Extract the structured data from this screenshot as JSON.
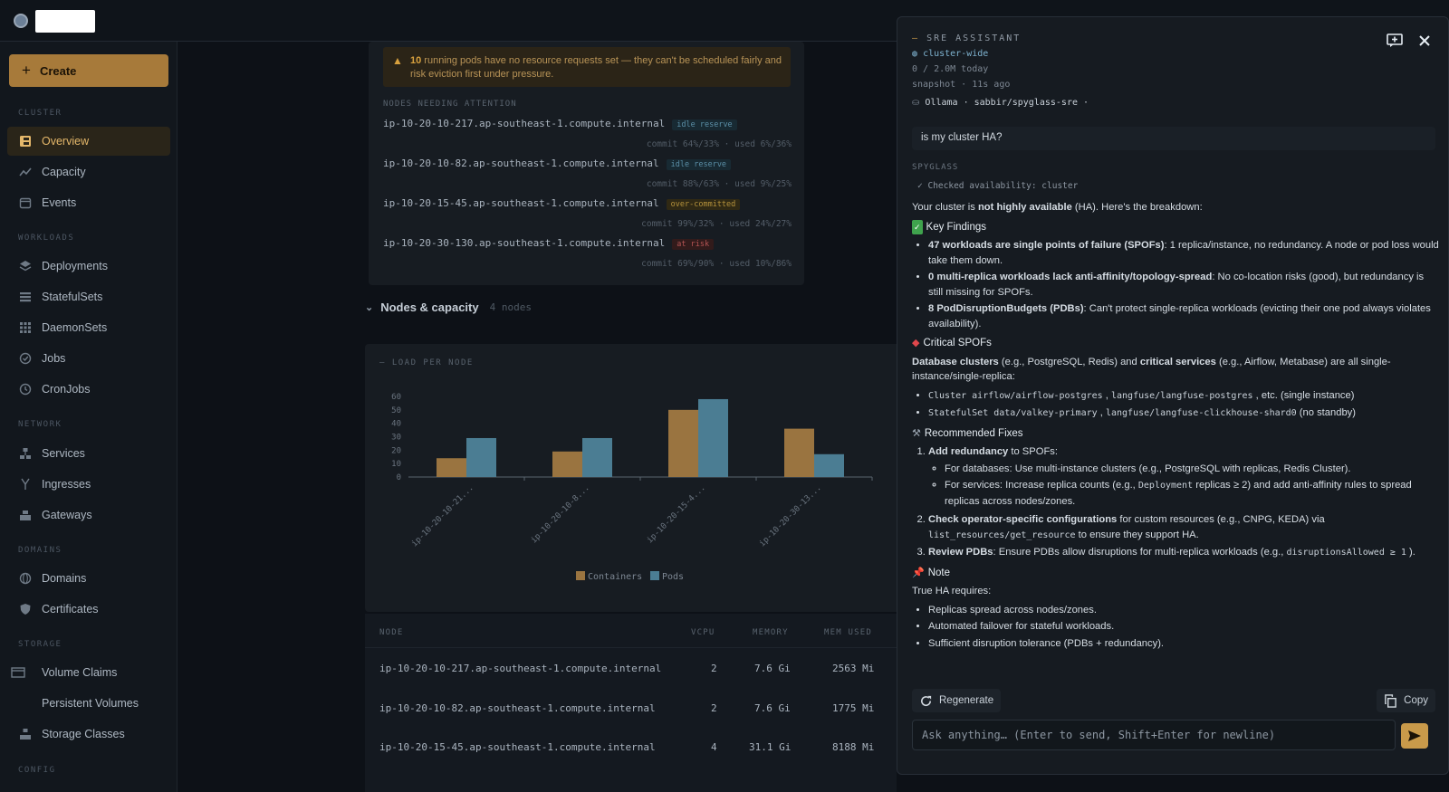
{
  "sidebar": {
    "create_label": "Create",
    "sections": {
      "cluster": "CLUSTER",
      "workloads": "WORKLOADS",
      "network": "NETWORK",
      "domains": "DOMAINS",
      "storage": "STORAGE",
      "config": "CONFIG"
    },
    "items": {
      "overview": "Overview",
      "capacity": "Capacity",
      "events": "Events",
      "deployments": "Deployments",
      "statefulsets": "StatefulSets",
      "daemonsets": "DaemonSets",
      "jobs": "Jobs",
      "cronjobs": "CronJobs",
      "services": "Services",
      "ingresses": "Ingresses",
      "gateways": "Gateways",
      "domains": "Domains",
      "certificates": "Certificates",
      "volume_claims": "Volume Claims",
      "persistent_volumes": "Persistent Volumes",
      "storage_classes": "Storage Classes"
    }
  },
  "alert": {
    "count": "10",
    "text": " running pods have no resource requests set — they can't be scheduled fairly and risk eviction first under pressure."
  },
  "attention": {
    "label": "NODES NEEDING ATTENTION",
    "nodes": [
      {
        "name": "ip-10-20-10-217.ap-southeast-1.compute.internal",
        "tag": "idle reserve",
        "stats": "commit 64%/33% · used 6%/36%"
      },
      {
        "name": "ip-10-20-10-82.ap-southeast-1.compute.internal",
        "tag": "idle reserve",
        "stats": "commit 88%/63% · used 9%/25%"
      },
      {
        "name": "ip-10-20-15-45.ap-southeast-1.compute.internal",
        "tag": "over-committed",
        "stats": "commit 99%/32% · used 24%/27%"
      },
      {
        "name": "ip-10-20-30-130.ap-southeast-1.compute.internal",
        "tag": "at risk",
        "stats": "commit 69%/90% · used 10%/86%"
      }
    ]
  },
  "nodes_section": {
    "title": "Nodes & capacity",
    "count": "4 nodes"
  },
  "chart_data": {
    "type": "bar",
    "title": "LOAD PER NODE",
    "categories": [
      "ip-10-20-10-21...",
      "ip-10-20-10-8...",
      "ip-10-20-15-4...",
      "ip-10-20-30-13..."
    ],
    "series": [
      {
        "name": "Containers",
        "values": [
          14,
          19,
          50,
          36
        ],
        "color": "#9a7440"
      },
      {
        "name": "Pods",
        "values": [
          29,
          29,
          58,
          17
        ],
        "color": "#4b7d93"
      }
    ],
    "ylim": [
      0,
      60
    ],
    "yticks": [
      0,
      10,
      20,
      30,
      40,
      50,
      60
    ],
    "legend": "bottom"
  },
  "table": {
    "headers": {
      "node": "NODE",
      "vcpu": "VCPU",
      "memory": "MEMORY",
      "mem_used": "MEM USED"
    },
    "rows": [
      {
        "node": "ip-10-20-10-217.ap-southeast-1.compute.internal",
        "vcpu": "2",
        "memory": "7.6 Gi",
        "mem_used": "2563 Mi"
      },
      {
        "node": "ip-10-20-10-82.ap-southeast-1.compute.internal",
        "vcpu": "2",
        "memory": "7.6 Gi",
        "mem_used": "1775 Mi"
      },
      {
        "node": "ip-10-20-15-45.ap-southeast-1.compute.internal",
        "vcpu": "4",
        "memory": "31.1 Gi",
        "mem_used": "8188 Mi"
      }
    ]
  },
  "assistant": {
    "title": "SRE ASSISTANT",
    "scope": "cluster-wide",
    "usage": "0 / 2.0M today",
    "snapshot": "snapshot · 11s ago",
    "model": "Ollama · sabbir/spyglass-sre ·",
    "user_message": "is my cluster HA?",
    "responder": "SPYGLASS",
    "tool_call": "Checked availability: cluster",
    "intro_pre": "Your cluster is ",
    "intro_bold": "not highly available",
    "intro_post": " (HA). Here's the breakdown:",
    "h_findings": "Key Findings",
    "f1_bold": "47 workloads are single points of failure (SPOFs)",
    "f1_text": ": 1 replica/instance, no redundancy. A node or pod loss would take them down.",
    "f2_bold": "0 multi-replica workloads lack anti-affinity/topology-spread",
    "f2_text": ": No co-location risks (good), but redundancy is still missing for SPOFs.",
    "f3_bold": "8 PodDisruptionBudgets (PDBs)",
    "f3_text": ": Can't protect single-replica workloads (evicting their one pod always violates availability).",
    "h_critical": "Critical SPOFs",
    "c_bold1": "Database clusters",
    "c_text1": " (e.g., PostgreSQL, Redis) and ",
    "c_bold2": "critical services",
    "c_text2": " (e.g., Airflow, Metabase) are all single-instance/single-replica:",
    "c_li1_code": "Cluster airflow/airflow-postgres",
    "c_li1_sep": " , ",
    "c_li1_code2": "langfuse/langfuse-postgres",
    "c_li1_text": " , etc. (single instance)",
    "c_li2_code": "StatefulSet data/valkey-primary",
    "c_li2_sep": " , ",
    "c_li2_code2": "langfuse/langfuse-clickhouse-shard0",
    "c_li2_text": " (no standby)",
    "h_fixes": "Recommended Fixes",
    "r1_bold": "Add redundancy",
    "r1_text": " to SPOFs:",
    "r1_s1": "For databases: Use multi-instance clusters (e.g., PostgreSQL with replicas, Redis Cluster).",
    "r1_s2_pre": "For services: Increase replica counts (e.g.,  ",
    "r1_s2_code": "Deployment",
    "r1_s2_post": "  replicas ≥ 2) and add anti-affinity rules to spread replicas across nodes/zones.",
    "r2_bold": "Check operator-specific configurations",
    "r2_text": " for custom resources (e.g., CNPG, KEDA) via ",
    "r2_code": "list_resources/get_resource",
    "r2_post": "  to ensure they support HA.",
    "r3_bold": "Review PDBs",
    "r3_text": ": Ensure PDBs allow disruptions for multi-replica workloads (e.g.,  ",
    "r3_code": "disruptionsAllowed ≥ 1",
    "r3_post": " ).",
    "h_note": "Note",
    "note_intro": "True HA requires:",
    "n1": "Replicas spread across nodes/zones.",
    "n2": "Automated failover for stateful workloads.",
    "n3": "Sufficient disruption tolerance (PDBs + redundancy).",
    "regenerate": "Regenerate",
    "copy": "Copy",
    "input_placeholder": "Ask anything… (Enter to send, Shift+Enter for newline)"
  }
}
